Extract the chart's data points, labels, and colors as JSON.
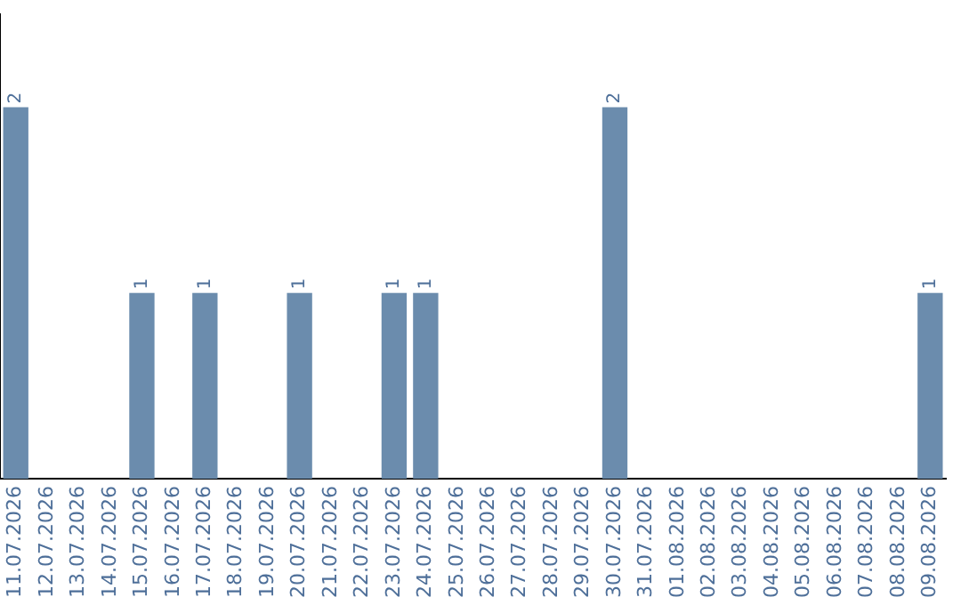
{
  "chart_data": {
    "type": "bar",
    "categories": [
      "11.07.2026",
      "12.07.2026",
      "13.07.2026",
      "14.07.2026",
      "15.07.2026",
      "16.07.2026",
      "17.07.2026",
      "18.07.2026",
      "19.07.2026",
      "20.07.2026",
      "21.07.2026",
      "22.07.2026",
      "23.07.2026",
      "24.07.2026",
      "25.07.2026",
      "26.07.2026",
      "27.07.2026",
      "28.07.2026",
      "29.07.2026",
      "30.07.2026",
      "31.07.2026",
      "01.08.2026",
      "02.08.2026",
      "03.08.2026",
      "04.08.2026",
      "05.08.2026",
      "06.08.2026",
      "07.08.2026",
      "08.08.2026",
      "09.08.2026"
    ],
    "values": [
      2,
      0,
      0,
      0,
      1,
      0,
      1,
      0,
      0,
      1,
      0,
      0,
      1,
      1,
      0,
      0,
      0,
      0,
      0,
      2,
      0,
      0,
      0,
      0,
      0,
      0,
      0,
      0,
      0,
      1
    ],
    "value_labels": [
      "2",
      null,
      null,
      null,
      "1",
      null,
      "1",
      null,
      null,
      "1",
      null,
      null,
      "1",
      "1",
      null,
      null,
      null,
      null,
      null,
      "2",
      null,
      null,
      null,
      null,
      null,
      null,
      null,
      null,
      null,
      "1"
    ],
    "color": "#6b8cad",
    "grid": false,
    "legend": false,
    "tick_labels": "x"
  }
}
